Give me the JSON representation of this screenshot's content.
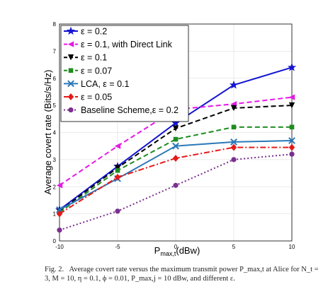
{
  "chart_data": {
    "type": "line",
    "title": "",
    "xlabel": "P",
    "xlabel_sub": "max,t",
    "xlabel_unit": "(dBw)",
    "ylabel": "Average covert rate (Bits/s/Hz)",
    "x": [
      -10,
      -5,
      0,
      5,
      10
    ],
    "x_ticks": [
      "-10",
      "-5",
      "0",
      "5",
      "10"
    ],
    "y_ticks": [
      "0",
      "1",
      "2",
      "3",
      "4",
      "5",
      "6",
      "7",
      "8"
    ],
    "xlim": [
      -10,
      10
    ],
    "ylim": [
      0,
      8
    ],
    "grid": true,
    "legend_position": "top-left",
    "series": [
      {
        "name": "ε = 0.2",
        "values": [
          1.15,
          2.75,
          4.35,
          5.75,
          6.4
        ],
        "color": "#1414d2",
        "dash": "solid",
        "marker": "star"
      },
      {
        "name": "ε = 0.1, with Direct Link",
        "values": [
          2.05,
          3.5,
          4.85,
          5.05,
          5.3
        ],
        "color": "#e619e6",
        "dash": "dashed",
        "marker": "triangle-left"
      },
      {
        "name": "ε = 0.1",
        "values": [
          1.1,
          2.7,
          4.15,
          4.9,
          5.0
        ],
        "color": "#000000",
        "dash": "dashed",
        "marker": "triangle-down"
      },
      {
        "name": "ε = 0.07",
        "values": [
          1.05,
          2.6,
          3.75,
          4.2,
          4.2
        ],
        "color": "#1f8c1f",
        "dash": "dashed",
        "marker": "square"
      },
      {
        "name": "LCA, ε = 0.1",
        "values": [
          1.15,
          2.3,
          3.5,
          3.65,
          3.7
        ],
        "color": "#2a78b8",
        "dash": "solid",
        "marker": "x"
      },
      {
        "name": "ε = 0.05",
        "values": [
          1.0,
          2.35,
          3.05,
          3.45,
          3.45
        ],
        "color": "#e61919",
        "dash": "dashdot",
        "marker": "diamond"
      },
      {
        "name": "Baseline Scheme,ε = 0.2",
        "values": [
          0.4,
          1.1,
          2.05,
          3.0,
          3.2
        ],
        "color": "#7a2f8f",
        "dash": "dotted",
        "marker": "circle"
      }
    ]
  },
  "caption": {
    "label": "Fig. 2.",
    "text": "Average covert rate versus the maximum transmit power P_max,t at Alice for N_t = 3, M = 10, η = 0.1, ϕ = 0.01, P_max,j = 10 dBw, and different ε."
  }
}
